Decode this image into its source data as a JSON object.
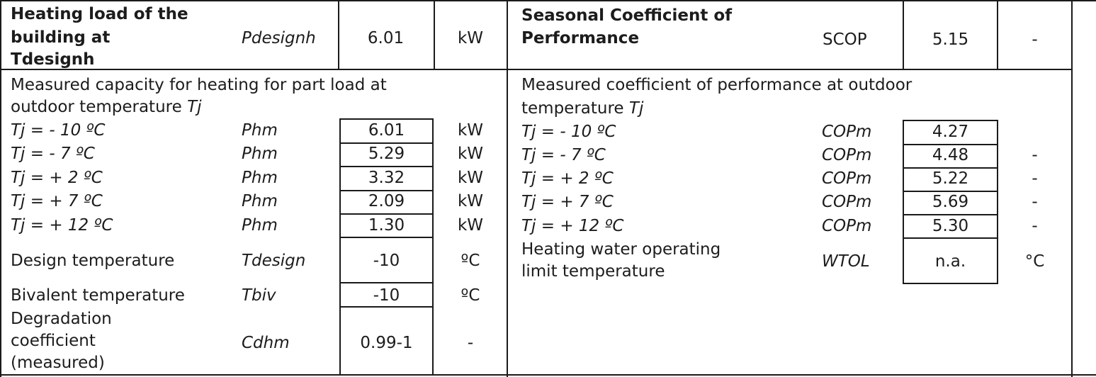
{
  "left_header": {
    "label_line1": "Heating load of the",
    "label_line2": "building at",
    "label_line3": "Tdesignh",
    "symbol": "Pdesignh",
    "value": "6.01",
    "unit": "kW"
  },
  "right_header": {
    "label_line1": "Seasonal  Coefficient of",
    "label_line2": "Performance",
    "symbol": "SCOP",
    "value": "5.15",
    "unit": "-"
  },
  "left_section": {
    "title_line1": "Measured capacity for heating for part load at",
    "title_line2_prefix": "outdoor temperature ",
    "title_line2_var": "Tj",
    "rows": [
      {
        "condition": "Tj = - 10 ºC",
        "symbol": "Phm",
        "value": "6.01",
        "unit": "kW"
      },
      {
        "condition": "Tj = - 7 ºC",
        "symbol": "Phm",
        "value": "5.29",
        "unit": "kW"
      },
      {
        "condition": "Tj = + 2 ºC",
        "symbol": "Phm",
        "value": "3.32",
        "unit": "kW"
      },
      {
        "condition": "Tj = + 7 ºC",
        "symbol": "Phm",
        "value": "2.09",
        "unit": "kW"
      },
      {
        "condition": "Tj = + 12 ºC",
        "symbol": "Phm",
        "value": "1.30",
        "unit": "kW"
      }
    ],
    "design_temp": {
      "label": "Design temperature",
      "symbol": "Tdesign",
      "value": "-10",
      "unit": "ºC"
    },
    "bivalent_temp": {
      "label": "Bivalent temperature",
      "symbol": "Tbiv",
      "value": "-10",
      "unit": "ºC"
    },
    "degradation": {
      "label_line1": "Degradation",
      "label_line2": "coefficient",
      "label_line3": "(measured)",
      "symbol": "Cdhm",
      "value": "0.99-1",
      "unit": "-"
    }
  },
  "right_section": {
    "title_line1": "Measured coefficient of performance at outdoor",
    "title_line2_prefix": "temperature ",
    "title_line2_var": "Tj",
    "rows": [
      {
        "condition": "Tj = - 10 ºC",
        "symbol": "COPm",
        "value": "4.27",
        "unit": ""
      },
      {
        "condition": "Tj = - 7 ºC",
        "symbol": "COPm",
        "value": "4.48",
        "unit": "-"
      },
      {
        "condition": "Tj = + 2 ºC",
        "symbol": "COPm",
        "value": "5.22",
        "unit": "-"
      },
      {
        "condition": "Tj = + 7 ºC",
        "symbol": "COPm",
        "value": "5.69",
        "unit": "-"
      },
      {
        "condition": "Tj = + 12 ºC",
        "symbol": "COPm",
        "value": "5.30",
        "unit": "-"
      }
    ],
    "wtol": {
      "label_line1": "Heating water operating",
      "label_line2": "limit temperature",
      "symbol": "WTOL",
      "value": "n.a.",
      "unit": "°C"
    }
  }
}
